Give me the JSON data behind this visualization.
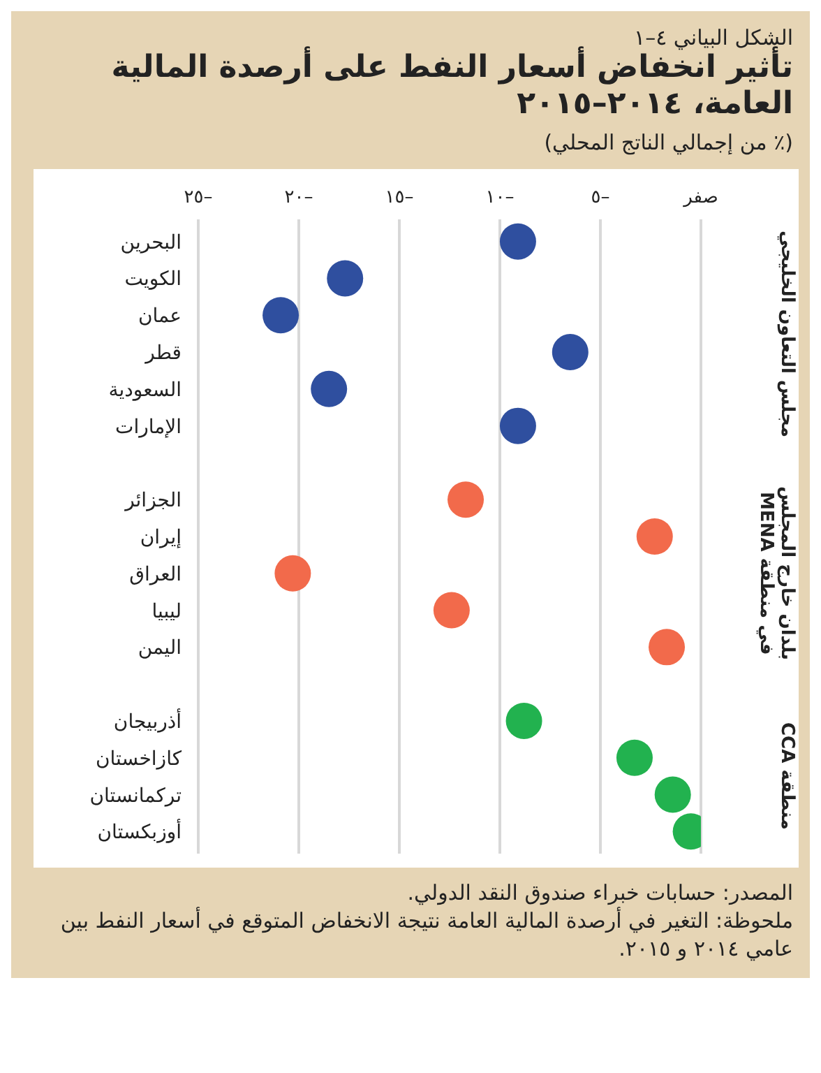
{
  "chart_data": {
    "type": "scatter",
    "orientation": "horizontal",
    "subtitle": "الشكل البياني ٤–١",
    "title": "تأثير انخفاض أسعار النفط على أرصدة المالية العامة، ٢٠١٤–٢٠١٥",
    "xlabel": "(٪ من إجمالي الناتج المحلي)",
    "categories": [
      "البحرين",
      "الكويت",
      "عمان",
      "قطر",
      "السعودية",
      "الإمارات",
      null,
      "الجزائر",
      "إيران",
      "العراق",
      "ليبيا",
      "اليمن",
      null,
      "أذربيجان",
      "كازاخستان",
      "تركمانستان",
      "أوزبكستان"
    ],
    "series": [
      {
        "name": "مجلس التعاون الخليجي",
        "color": "#2f4f9f",
        "values": [
          -9.1,
          -17.7,
          -20.9,
          -6.5,
          -18.5,
          -9.1,
          null,
          null,
          null,
          null,
          null,
          null,
          null,
          null,
          null,
          null,
          null
        ]
      },
      {
        "name": "بلدان خارج المجلس في منطقة MENA",
        "color": "#f26a4b",
        "values": [
          null,
          null,
          null,
          null,
          null,
          null,
          null,
          -11.7,
          -2.3,
          -20.3,
          -12.4,
          -1.7,
          null,
          null,
          null,
          null,
          null
        ]
      },
      {
        "name": "منطقة CCA",
        "color": "#22b24f",
        "values": [
          null,
          null,
          null,
          null,
          null,
          null,
          null,
          null,
          null,
          null,
          null,
          null,
          null,
          -8.8,
          -3.3,
          -1.4,
          -0.5
        ]
      }
    ],
    "xlim": [
      -25,
      0
    ],
    "xticks": [
      {
        "value": -25,
        "label": "–٢٥"
      },
      {
        "value": -20,
        "label": "–٢٠"
      },
      {
        "value": -15,
        "label": "–١٥"
      },
      {
        "value": -10,
        "label": "–١٠"
      },
      {
        "value": -5,
        "label": "–٥"
      },
      {
        "value": 0,
        "label": "صفر"
      }
    ],
    "grid": "x",
    "marker": "circle",
    "annotations": [
      "المصدر: حسابات خبراء صندوق النقد الدولي.",
      "ملحوظة: التغير في أرصدة المالية العامة نتيجة الانخفاض المتوقع في أسعار النفط بين عامي ٢٠١٤ و ٢٠١٥."
    ]
  }
}
